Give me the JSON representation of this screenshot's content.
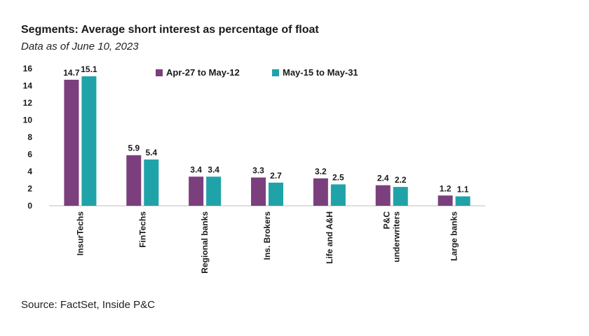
{
  "chart_data": {
    "type": "bar",
    "title": "Segments: Average short interest as percentage of float",
    "subtitle": "Data as of June 10, 2023",
    "source": "Source: FactSet, Inside P&C",
    "categories": [
      [
        "InsurTechs"
      ],
      [
        "FinTechs"
      ],
      [
        "Regional banks"
      ],
      [
        "Ins. Brokers"
      ],
      [
        "Life and A&H"
      ],
      [
        "P&C",
        "underwriters"
      ],
      [
        "Large banks"
      ]
    ],
    "series": [
      {
        "name": "Apr-27 to May-12",
        "color": "#7b3f7e",
        "values": [
          14.7,
          5.9,
          3.4,
          3.3,
          3.2,
          2.4,
          1.2
        ],
        "labels": [
          "14.7",
          "5.9",
          "3.4",
          "3.3",
          "3.2",
          "2.4",
          "1.2"
        ]
      },
      {
        "name": "May-15 to May-31",
        "color": "#1fa3a8",
        "values": [
          15.1,
          5.4,
          3.4,
          2.7,
          2.5,
          2.2,
          1.1
        ],
        "labels": [
          "15.1",
          "5.4",
          "3.4",
          "2.7",
          "2.5",
          "2.2",
          "1.1"
        ]
      }
    ],
    "yticks": [
      "0",
      "2",
      "4",
      "6",
      "8",
      "10",
      "12",
      "14",
      "16"
    ],
    "ylim": [
      0,
      16
    ],
    "legend_position": "top-center",
    "grid": false
  }
}
